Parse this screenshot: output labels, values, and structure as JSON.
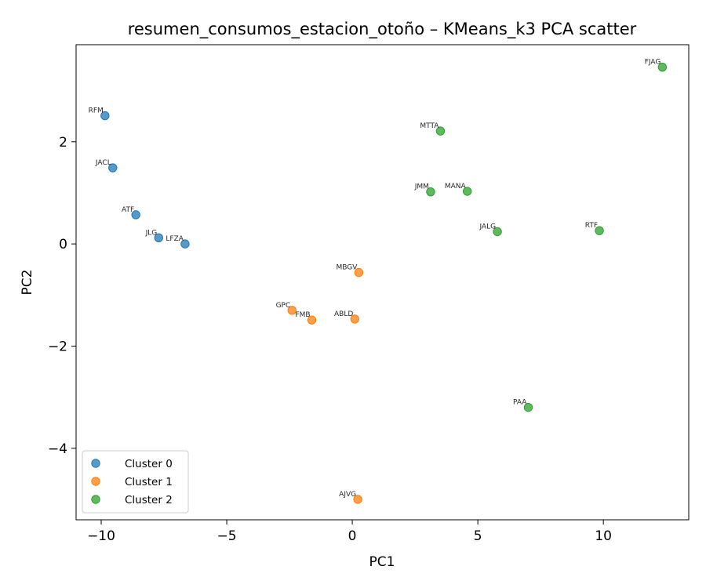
{
  "chart_data": {
    "type": "scatter",
    "title": "resumen_consumos_estacion_otoño – KMeans_k3 PCA scatter",
    "xlabel": "PC1",
    "ylabel": "PC2",
    "xlim": [
      -11.0,
      13.4
    ],
    "ylim": [
      -5.4,
      3.9
    ],
    "xticks": [
      -10,
      -5,
      0,
      5,
      10
    ],
    "yticks": [
      -4,
      -2,
      0,
      2
    ],
    "xtick_labels": [
      "−10",
      "−5",
      "0",
      "5",
      "10"
    ],
    "ytick_labels": [
      "−4",
      "−2",
      "0",
      "2"
    ],
    "legend_position": "lower-left",
    "grid": false,
    "series": [
      {
        "name": "Cluster 0",
        "color": "#1f77b4",
        "points": [
          {
            "label": "RFM",
            "x": -9.85,
            "y": 2.51
          },
          {
            "label": "JACL",
            "x": -9.54,
            "y": 1.49
          },
          {
            "label": "ATF",
            "x": -8.62,
            "y": 0.57
          },
          {
            "label": "JLG",
            "x": -7.71,
            "y": 0.12
          },
          {
            "label": "LFZA",
            "x": -6.66,
            "y": 0.0
          }
        ]
      },
      {
        "name": "Cluster 1",
        "color": "#ff7f0e",
        "points": [
          {
            "label": "MBGV",
            "x": 0.26,
            "y": -0.56
          },
          {
            "label": "GPC",
            "x": -2.4,
            "y": -1.3
          },
          {
            "label": "FMB",
            "x": -1.61,
            "y": -1.49
          },
          {
            "label": "ABLD",
            "x": 0.1,
            "y": -1.47
          },
          {
            "label": "AJVG",
            "x": 0.22,
            "y": -5.0
          }
        ]
      },
      {
        "name": "Cluster 2",
        "color": "#2ca02c",
        "points": [
          {
            "label": "FJAG",
            "x": 12.35,
            "y": 3.46
          },
          {
            "label": "MTTA",
            "x": 3.51,
            "y": 2.21
          },
          {
            "label": "JMM",
            "x": 3.12,
            "y": 1.02
          },
          {
            "label": "MANA",
            "x": 4.58,
            "y": 1.03
          },
          {
            "label": "JALG",
            "x": 5.78,
            "y": 0.24
          },
          {
            "label": "RTF",
            "x": 9.84,
            "y": 0.26
          },
          {
            "label": "PAA",
            "x": 7.01,
            "y": -3.2
          }
        ]
      }
    ]
  }
}
